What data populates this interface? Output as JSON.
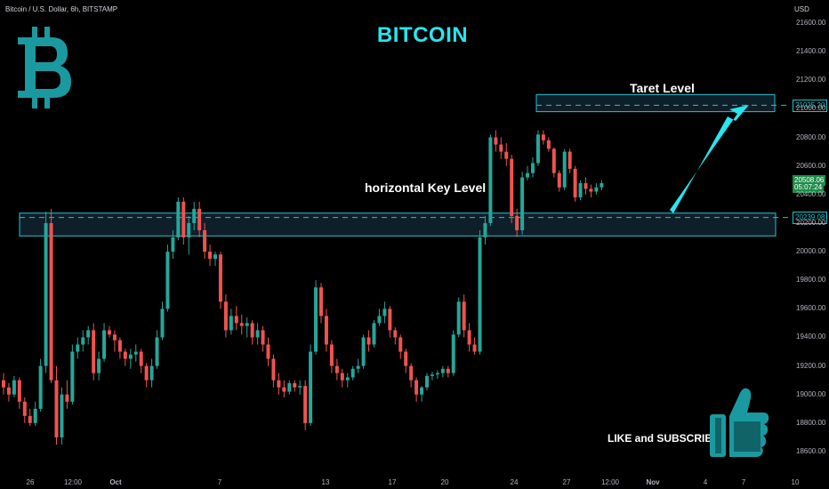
{
  "header": {
    "symbol": "Bitcoin / U.S. Dollar, 6h, BITSTAMP",
    "currency": "USD"
  },
  "title": "BITCOIN",
  "annotations": {
    "key_level": "horizontal Key Level",
    "target_level": "Taret Level",
    "promo": "LIKE and SUBSCRIBE"
  },
  "price_tags": {
    "target": "21025.20",
    "key": "20239.08",
    "last": "20508.06",
    "timer": "05:07:24"
  },
  "icons": {
    "logo": "bitcoin-logo-icon",
    "thumb": "thumbs-up-icon",
    "arrow": "arrow-up-right-icon"
  },
  "colors": {
    "up": "#26a69a",
    "down": "#ef5350",
    "accent": "#26e6f0",
    "zone_border": "#22c3cf",
    "zone_fill": "#0f1f2a",
    "logo": "#1a9aa0"
  },
  "chart_data": {
    "type": "candlestick",
    "interval": "6h",
    "ylim": [
      18500,
      21700
    ],
    "y_ticks": [
      "21600.00",
      "21400.00",
      "21200.00",
      "21000.00",
      "20800.00",
      "20600.00",
      "20400.00",
      "20200.00",
      "20000.00",
      "19800.00",
      "19600.00",
      "19400.00",
      "19200.00",
      "19000.00",
      "18800.00",
      "18600.00"
    ],
    "x_ticks": [
      {
        "label": "26",
        "bold": false
      },
      {
        "label": "12:00",
        "bold": false
      },
      {
        "label": "Oct",
        "bold": true
      },
      {
        "label": "7",
        "bold": false
      },
      {
        "label": "13",
        "bold": false
      },
      {
        "label": "17",
        "bold": false
      },
      {
        "label": "20",
        "bold": false
      },
      {
        "label": "24",
        "bold": false
      },
      {
        "label": "27",
        "bold": false
      },
      {
        "label": "12:00",
        "bold": false
      },
      {
        "label": "Nov",
        "bold": true
      },
      {
        "label": "4",
        "bold": false
      },
      {
        "label": "7",
        "bold": false
      },
      {
        "label": "10",
        "bold": false
      }
    ],
    "zones": [
      {
        "name": "horizontal Key Level",
        "low": 20110,
        "high": 20270,
        "line": 20239.08
      },
      {
        "name": "Taret Level",
        "low": 20980,
        "high": 21100,
        "line": 21025.2
      }
    ],
    "last_price": 20508.06,
    "candles": [
      [
        19100,
        19150,
        19000,
        19050
      ],
      [
        19050,
        19080,
        18950,
        19000
      ],
      [
        19000,
        19130,
        18980,
        19100
      ],
      [
        19100,
        19120,
        18900,
        18950
      ],
      [
        18950,
        18980,
        18800,
        18850
      ],
      [
        18850,
        18900,
        18780,
        18800
      ],
      [
        18800,
        18950,
        18780,
        18900
      ],
      [
        18900,
        19250,
        18880,
        19200
      ],
      [
        19200,
        20280,
        19150,
        20200
      ],
      [
        20200,
        20300,
        19080,
        19100
      ],
      [
        19100,
        19200,
        18650,
        18700
      ],
      [
        18700,
        19050,
        18650,
        19000
      ],
      [
        19000,
        19100,
        18900,
        18950
      ],
      [
        18950,
        19350,
        18930,
        19300
      ],
      [
        19300,
        19400,
        19250,
        19350
      ],
      [
        19350,
        19450,
        19300,
        19400
      ],
      [
        19400,
        19480,
        19350,
        19450
      ],
      [
        19450,
        19500,
        19100,
        19150
      ],
      [
        19150,
        19300,
        19100,
        19250
      ],
      [
        19250,
        19500,
        19230,
        19450
      ],
      [
        19450,
        19480,
        19400,
        19420
      ],
      [
        19420,
        19450,
        19300,
        19380
      ],
      [
        19380,
        19400,
        19250,
        19300
      ],
      [
        19300,
        19320,
        19200,
        19250
      ],
      [
        19250,
        19320,
        19180,
        19280
      ],
      [
        19280,
        19350,
        19230,
        19300
      ],
      [
        19300,
        19320,
        19150,
        19200
      ],
      [
        19200,
        19220,
        19050,
        19100
      ],
      [
        19100,
        19250,
        19050,
        19200
      ],
      [
        19200,
        19450,
        19180,
        19400
      ],
      [
        19400,
        19650,
        19380,
        19600
      ],
      [
        19600,
        20050,
        19580,
        20000
      ],
      [
        20000,
        20150,
        19950,
        20100
      ],
      [
        20100,
        20380,
        20080,
        20350
      ],
      [
        20350,
        20380,
        20050,
        20100
      ],
      [
        20100,
        20250,
        19980,
        20200
      ],
      [
        20200,
        20350,
        20150,
        20300
      ],
      [
        20300,
        20350,
        20100,
        20150
      ],
      [
        20150,
        20200,
        19950,
        20000
      ],
      [
        20000,
        20050,
        19900,
        19950
      ],
      [
        19950,
        20000,
        19900,
        19980
      ],
      [
        19980,
        20000,
        19600,
        19650
      ],
      [
        19650,
        19700,
        19400,
        19450
      ],
      [
        19450,
        19600,
        19420,
        19550
      ],
      [
        19550,
        19620,
        19450,
        19500
      ],
      [
        19500,
        19560,
        19420,
        19480
      ],
      [
        19480,
        19540,
        19400,
        19500
      ],
      [
        19500,
        19520,
        19350,
        19400
      ],
      [
        19400,
        19500,
        19350,
        19450
      ],
      [
        19450,
        19480,
        19300,
        19350
      ],
      [
        19350,
        19400,
        19200,
        19250
      ],
      [
        19250,
        19280,
        19050,
        19100
      ],
      [
        19100,
        19150,
        19000,
        19050
      ],
      [
        19050,
        19100,
        18980,
        19020
      ],
      [
        19020,
        19100,
        19000,
        19080
      ],
      [
        19080,
        19100,
        19020,
        19050
      ],
      [
        19050,
        19100,
        19000,
        19060
      ],
      [
        19060,
        19100,
        18750,
        18800
      ],
      [
        18800,
        19350,
        18780,
        19300
      ],
      [
        19300,
        19800,
        19280,
        19750
      ],
      [
        19750,
        19780,
        19500,
        19550
      ],
      [
        19550,
        19600,
        19300,
        19350
      ],
      [
        19350,
        19380,
        19150,
        19200
      ],
      [
        19200,
        19250,
        19100,
        19150
      ],
      [
        19150,
        19180,
        19050,
        19100
      ],
      [
        19100,
        19150,
        19050,
        19120
      ],
      [
        19120,
        19200,
        19100,
        19180
      ],
      [
        19180,
        19250,
        19150,
        19200
      ],
      [
        19200,
        19420,
        19180,
        19400
      ],
      [
        19400,
        19450,
        19300,
        19350
      ],
      [
        19350,
        19520,
        19330,
        19500
      ],
      [
        19500,
        19600,
        19480,
        19550
      ],
      [
        19550,
        19650,
        19500,
        19600
      ],
      [
        19600,
        19620,
        19400,
        19450
      ],
      [
        19450,
        19470,
        19350,
        19400
      ],
      [
        19400,
        19420,
        19250,
        19300
      ],
      [
        19300,
        19320,
        19150,
        19200
      ],
      [
        19200,
        19220,
        19050,
        19100
      ],
      [
        19100,
        19120,
        18950,
        19000
      ],
      [
        19000,
        19060,
        18950,
        19050
      ],
      [
        19050,
        19150,
        19030,
        19130
      ],
      [
        19130,
        19160,
        19100,
        19140
      ],
      [
        19140,
        19170,
        19110,
        19150
      ],
      [
        19150,
        19200,
        19120,
        19180
      ],
      [
        19180,
        19200,
        19120,
        19150
      ],
      [
        19150,
        19450,
        19130,
        19420
      ],
      [
        19420,
        19680,
        19400,
        19650
      ],
      [
        19650,
        19700,
        19400,
        19450
      ],
      [
        19450,
        19500,
        19300,
        19350
      ],
      [
        19350,
        19400,
        19280,
        19300
      ],
      [
        19300,
        20150,
        19280,
        20100
      ],
      [
        20100,
        20250,
        20050,
        20200
      ],
      [
        20200,
        20820,
        20180,
        20800
      ],
      [
        20800,
        20850,
        20700,
        20750
      ],
      [
        20750,
        20800,
        20650,
        20700
      ],
      [
        20700,
        20760,
        20600,
        20650
      ],
      [
        20650,
        20680,
        20200,
        20250
      ],
      [
        20250,
        20300,
        20100,
        20150
      ],
      [
        20150,
        20560,
        20120,
        20520
      ],
      [
        20520,
        20600,
        20500,
        20550
      ],
      [
        20550,
        20660,
        20520,
        20620
      ],
      [
        20620,
        20850,
        20600,
        20820
      ],
      [
        20820,
        20850,
        20750,
        20780
      ],
      [
        20780,
        20800,
        20700,
        20720
      ],
      [
        20720,
        20730,
        20520,
        20550
      ],
      [
        20550,
        20570,
        20420,
        20450
      ],
      [
        20450,
        20720,
        20430,
        20700
      ],
      [
        20700,
        20720,
        20550,
        20580
      ],
      [
        20580,
        20600,
        20350,
        20380
      ],
      [
        20380,
        20500,
        20360,
        20480
      ],
      [
        20480,
        20520,
        20400,
        20440
      ],
      [
        20440,
        20470,
        20380,
        20420
      ],
      [
        20420,
        20480,
        20400,
        20450
      ],
      [
        20450,
        20500,
        20430,
        20480
      ]
    ]
  }
}
